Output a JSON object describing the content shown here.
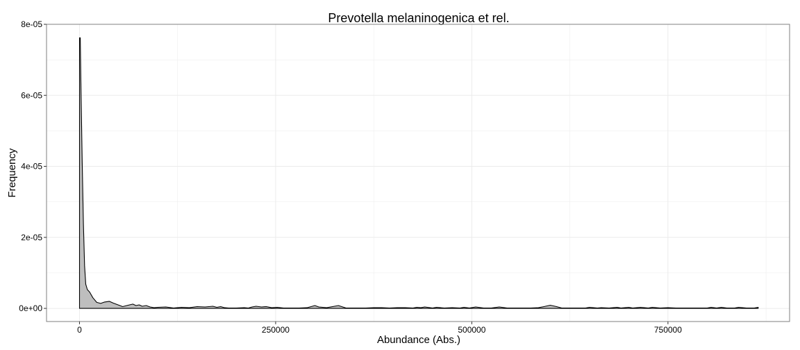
{
  "chart_data": {
    "type": "area",
    "title": "Prevotella melaninogenica et rel.",
    "xlabel": "Abundance (Abs.)",
    "ylabel": "Frequency",
    "xlim": [
      -42000,
      905000
    ],
    "ylim": [
      -3.7e-06,
      8e-05
    ],
    "x_ticks": [
      0,
      250000,
      500000,
      750000
    ],
    "x_tick_labels": [
      "0",
      "250000",
      "500000",
      "750000"
    ],
    "y_ticks": [
      0,
      2e-05,
      4e-05,
      6e-05,
      8e-05
    ],
    "y_tick_labels": [
      "0e+00",
      "2e-05",
      "4e-05",
      "6e-05",
      "8e-05"
    ],
    "grid": true,
    "colors": {
      "fill": "#bebebe",
      "line": "#000000",
      "grid": "#ebebeb",
      "panel_border": "#7f7f7f"
    },
    "series": [
      {
        "x": [
          0,
          1000,
          2000,
          3500,
          5000,
          6500,
          8000,
          10000,
          13000,
          17000,
          22000,
          27000,
          32000,
          38000,
          43000,
          48000,
          55000,
          62000,
          68000,
          72000,
          76000,
          80000,
          85000,
          90000,
          95000,
          100000,
          110000,
          120000,
          130000,
          140000,
          150000,
          160000,
          170000,
          175000,
          180000,
          185000,
          190000,
          200000,
          210000,
          215000,
          220000,
          225000,
          232000,
          238000,
          245000,
          252000,
          260000,
          270000,
          280000,
          290000,
          300000,
          305000,
          315000,
          325000,
          330000,
          340000,
          350000,
          355000,
          365000,
          375000,
          385000,
          395000,
          405000,
          415000,
          425000,
          430000,
          435000,
          440000,
          450000,
          455000,
          465000,
          475000,
          485000,
          490000,
          497000,
          505000,
          515000,
          525000,
          535000,
          545000,
          555000,
          565000,
          575000,
          585000,
          592000,
          600000,
          608000,
          615000,
          625000,
          635000,
          645000,
          650000,
          660000,
          665000,
          675000,
          685000,
          690000,
          700000,
          705000,
          715000,
          725000,
          730000,
          740000,
          750000,
          760000,
          770000,
          780000,
          790000,
          800000,
          805000,
          812000,
          818000,
          825000,
          835000,
          840000,
          850000,
          860000,
          865000
        ],
        "y": [
          7.62e-05,
          7.62e-05,
          6.1e-05,
          4.1e-05,
          2.4e-05,
          1.2e-05,
          6.8e-06,
          5.3e-06,
          4.6e-06,
          3e-06,
          1.7e-06,
          1.4e-06,
          1.8e-06,
          2e-06,
          1.5e-06,
          1.1e-06,
          5e-07,
          9e-07,
          1.2e-06,
          8e-07,
          1e-06,
          6e-07,
          8e-07,
          4e-07,
          2e-07,
          3e-07,
          4e-07,
          1e-07,
          3e-07,
          2e-07,
          5e-07,
          4e-07,
          6e-07,
          3e-07,
          5e-07,
          2e-07,
          1e-07,
          1e-07,
          2e-07,
          1e-07,
          4e-07,
          6e-07,
          4e-07,
          5e-07,
          2e-07,
          3e-07,
          1e-07,
          1e-07,
          1e-07,
          2e-07,
          8e-07,
          4e-07,
          2e-07,
          6e-07,
          8e-07,
          1e-07,
          1e-07,
          1e-07,
          1e-07,
          2e-07,
          2e-07,
          1e-07,
          2e-07,
          2e-07,
          1e-07,
          3e-07,
          2e-07,
          4e-07,
          1e-07,
          3e-07,
          1e-07,
          2e-07,
          1e-07,
          3e-07,
          1e-07,
          4e-07,
          1e-07,
          1e-07,
          4e-07,
          1e-07,
          1e-07,
          1e-07,
          1e-07,
          2e-07,
          5e-07,
          9e-07,
          5e-07,
          1e-07,
          1e-07,
          1e-07,
          1e-07,
          3e-07,
          1e-07,
          2e-07,
          1e-07,
          3e-07,
          1e-07,
          3e-07,
          1e-07,
          3e-07,
          1e-07,
          3e-07,
          1e-07,
          2e-07,
          1e-07,
          1e-07,
          1e-07,
          1e-07,
          1e-07,
          3e-07,
          1e-07,
          3e-07,
          1e-07,
          1e-07,
          3e-07,
          1e-07,
          1e-07,
          3e-07
        ]
      }
    ]
  }
}
